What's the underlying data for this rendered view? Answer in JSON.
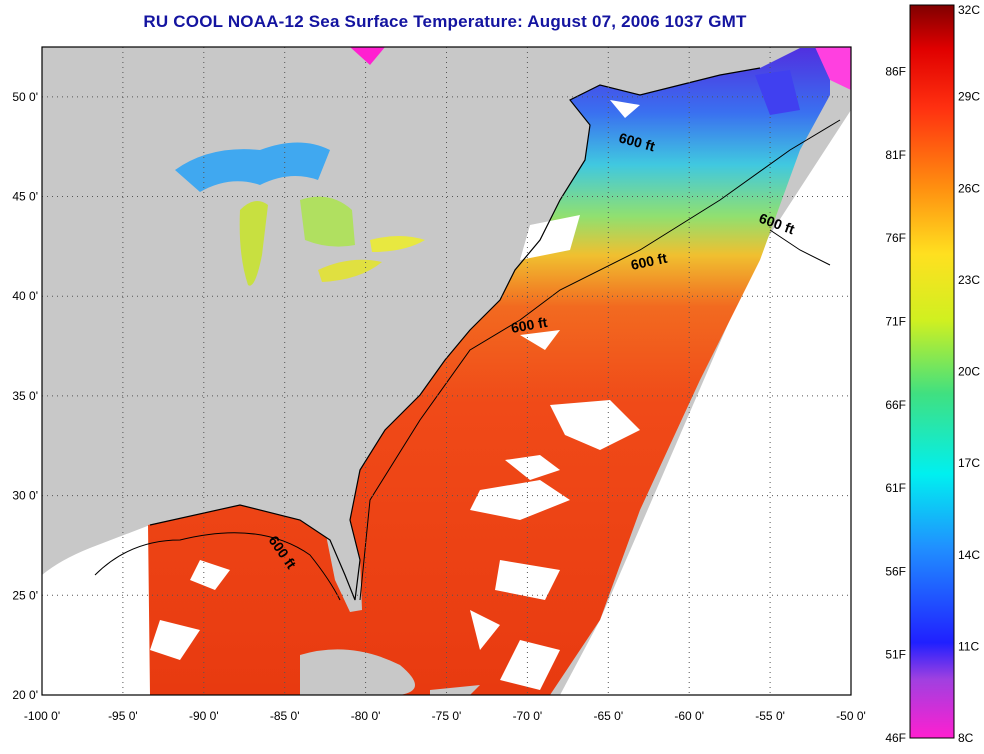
{
  "title": "RU COOL  NOAA-12  Sea Surface Temperature:  August 07, 2006 1037 GMT",
  "map": {
    "lon_range": [
      -100,
      -50
    ],
    "lat_range": [
      20,
      52.5
    ],
    "x_ticks": [
      "-100 0'",
      "-95 0'",
      "-90 0'",
      "-85 0'",
      "-80 0'",
      "-75 0'",
      "-70 0'",
      "-65 0'",
      "-60 0'",
      "-55 0'",
      "-50 0'"
    ],
    "y_ticks": [
      "50 0'",
      "45 0'",
      "40 0'",
      "35 0'",
      "30 0'",
      "25 0'",
      "20 0'"
    ],
    "grid": "dotted",
    "land_color": "#c8c8c8",
    "cloud_color": "#ffffff",
    "contour_label": "600 ft"
  },
  "colorbar": {
    "celsius_labels": [
      "32C",
      "29C",
      "26C",
      "23C",
      "20C",
      "17C",
      "14C",
      "11C",
      "8C"
    ],
    "fahrenheit_labels": [
      "86F",
      "81F",
      "76F",
      "71F",
      "66F",
      "61F",
      "56F",
      "51F",
      "46F"
    ],
    "celsius_range": [
      8,
      32
    ],
    "fahrenheit_range": [
      46,
      90
    ]
  }
}
